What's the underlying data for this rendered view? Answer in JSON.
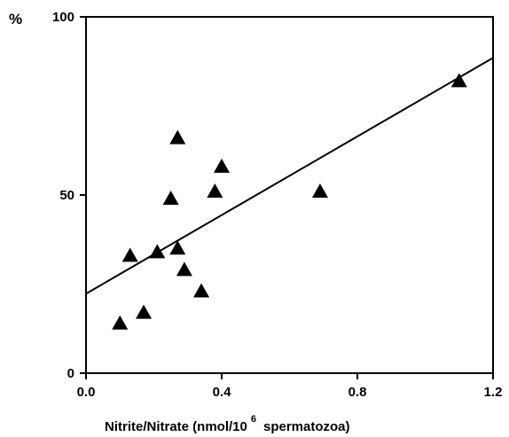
{
  "chart_data": {
    "type": "scatter",
    "title": "",
    "xlabel": {
      "before_superscript": "Nitrite/Nitrate  (nmol/10",
      "superscript": "6",
      "after_superscript": "spermatozoa)"
    },
    "ylabel": "%",
    "xlim": [
      0.0,
      1.2
    ],
    "ylim": [
      0,
      100
    ],
    "x_ticks": [
      0.0,
      0.4,
      0.8,
      1.2
    ],
    "x_tick_labels": [
      "0.0",
      "0.4",
      "0.8",
      "1.2"
    ],
    "y_ticks": [
      0,
      50,
      100
    ],
    "y_tick_labels": [
      "0",
      "50",
      "100"
    ],
    "grid": false,
    "legend": "none",
    "marker": "triangle",
    "points": [
      {
        "x": 0.1,
        "y": 14
      },
      {
        "x": 0.13,
        "y": 33
      },
      {
        "x": 0.17,
        "y": 17
      },
      {
        "x": 0.21,
        "y": 34
      },
      {
        "x": 0.25,
        "y": 49
      },
      {
        "x": 0.27,
        "y": 35
      },
      {
        "x": 0.27,
        "y": 66
      },
      {
        "x": 0.29,
        "y": 29
      },
      {
        "x": 0.34,
        "y": 23
      },
      {
        "x": 0.38,
        "y": 51
      },
      {
        "x": 0.4,
        "y": 58
      },
      {
        "x": 0.69,
        "y": 51
      },
      {
        "x": 1.1,
        "y": 82
      }
    ],
    "regression_line": {
      "x": [
        0.0,
        1.2
      ],
      "y": [
        22.3,
        88.5
      ]
    }
  }
}
